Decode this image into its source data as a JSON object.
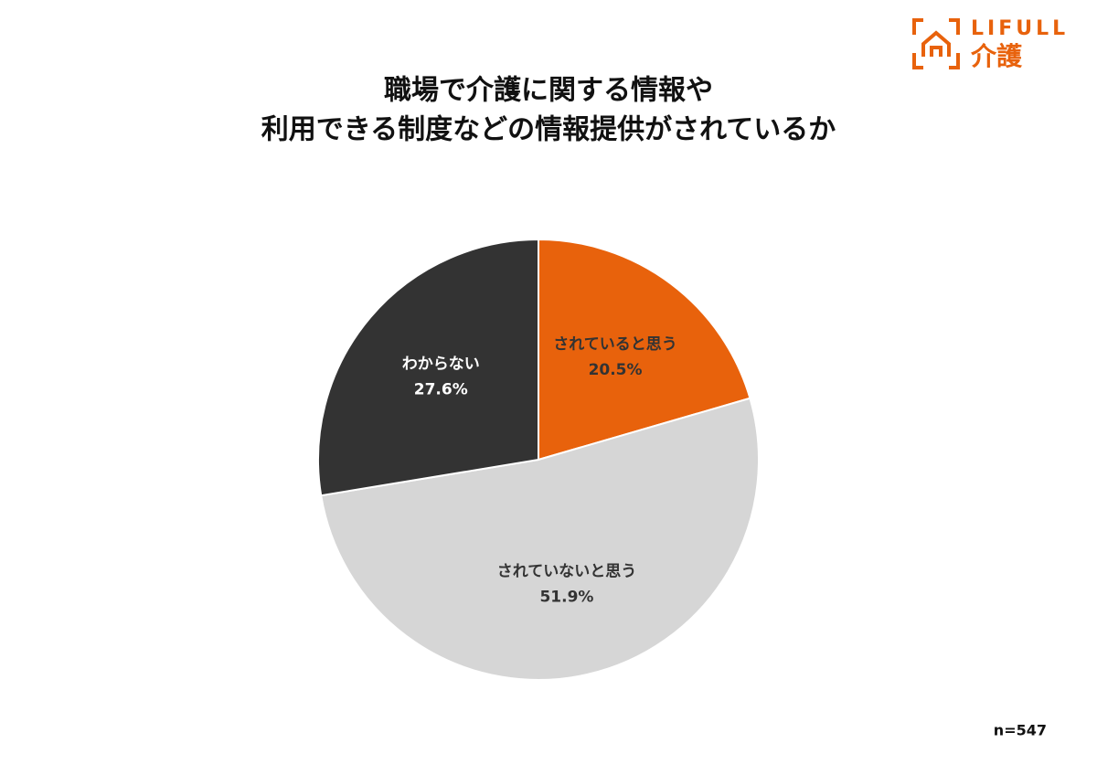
{
  "chart_data": {
    "type": "pie",
    "title": [
      "職場で介護に関する情報や",
      "利用できる制度などの情報提供がされているか"
    ],
    "categories": [
      "されていると思う",
      "されていないと思う",
      "わからない"
    ],
    "values": [
      20.5,
      51.9,
      27.6
    ],
    "value_labels": [
      "20.5%",
      "51.9%",
      "27.6%"
    ],
    "colors": [
      "#e8620c",
      "#d6d6d6",
      "#333333"
    ],
    "label_colors": [
      "#333333",
      "#333333",
      "#ffffff"
    ],
    "start_angle": 0,
    "direction": "clockwise",
    "annotation": "n=547"
  },
  "logo": {
    "text": "LIFULL",
    "subtext": "介護"
  }
}
